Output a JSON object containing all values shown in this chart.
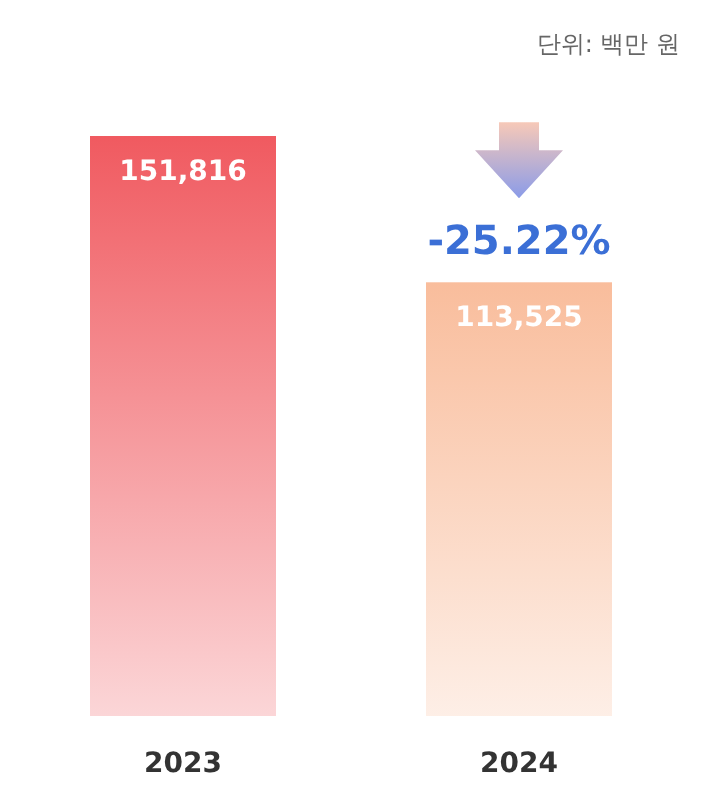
{
  "chart_data": {
    "type": "bar",
    "categories": [
      "2023",
      "2024"
    ],
    "values": [
      151816,
      113525
    ],
    "colors": [
      "#f05a60",
      "#f9bd9c"
    ],
    "value_labels": [
      "151,816",
      "113,525"
    ],
    "annotations": [
      "단위: 백만 원",
      "-25.22%"
    ]
  }
}
